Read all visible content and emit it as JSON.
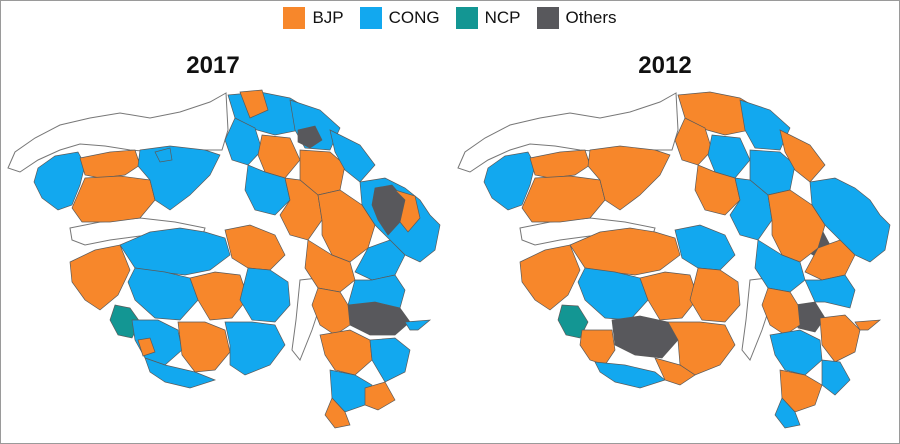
{
  "legend": [
    {
      "label": "BJP",
      "color": "#f7872b"
    },
    {
      "label": "CONG",
      "color": "#12a8ef"
    },
    {
      "label": "NCP",
      "color": "#139693"
    },
    {
      "label": "Others",
      "color": "#58585c"
    }
  ],
  "maps": [
    {
      "year": "2017"
    },
    {
      "year": "2012"
    }
  ]
}
